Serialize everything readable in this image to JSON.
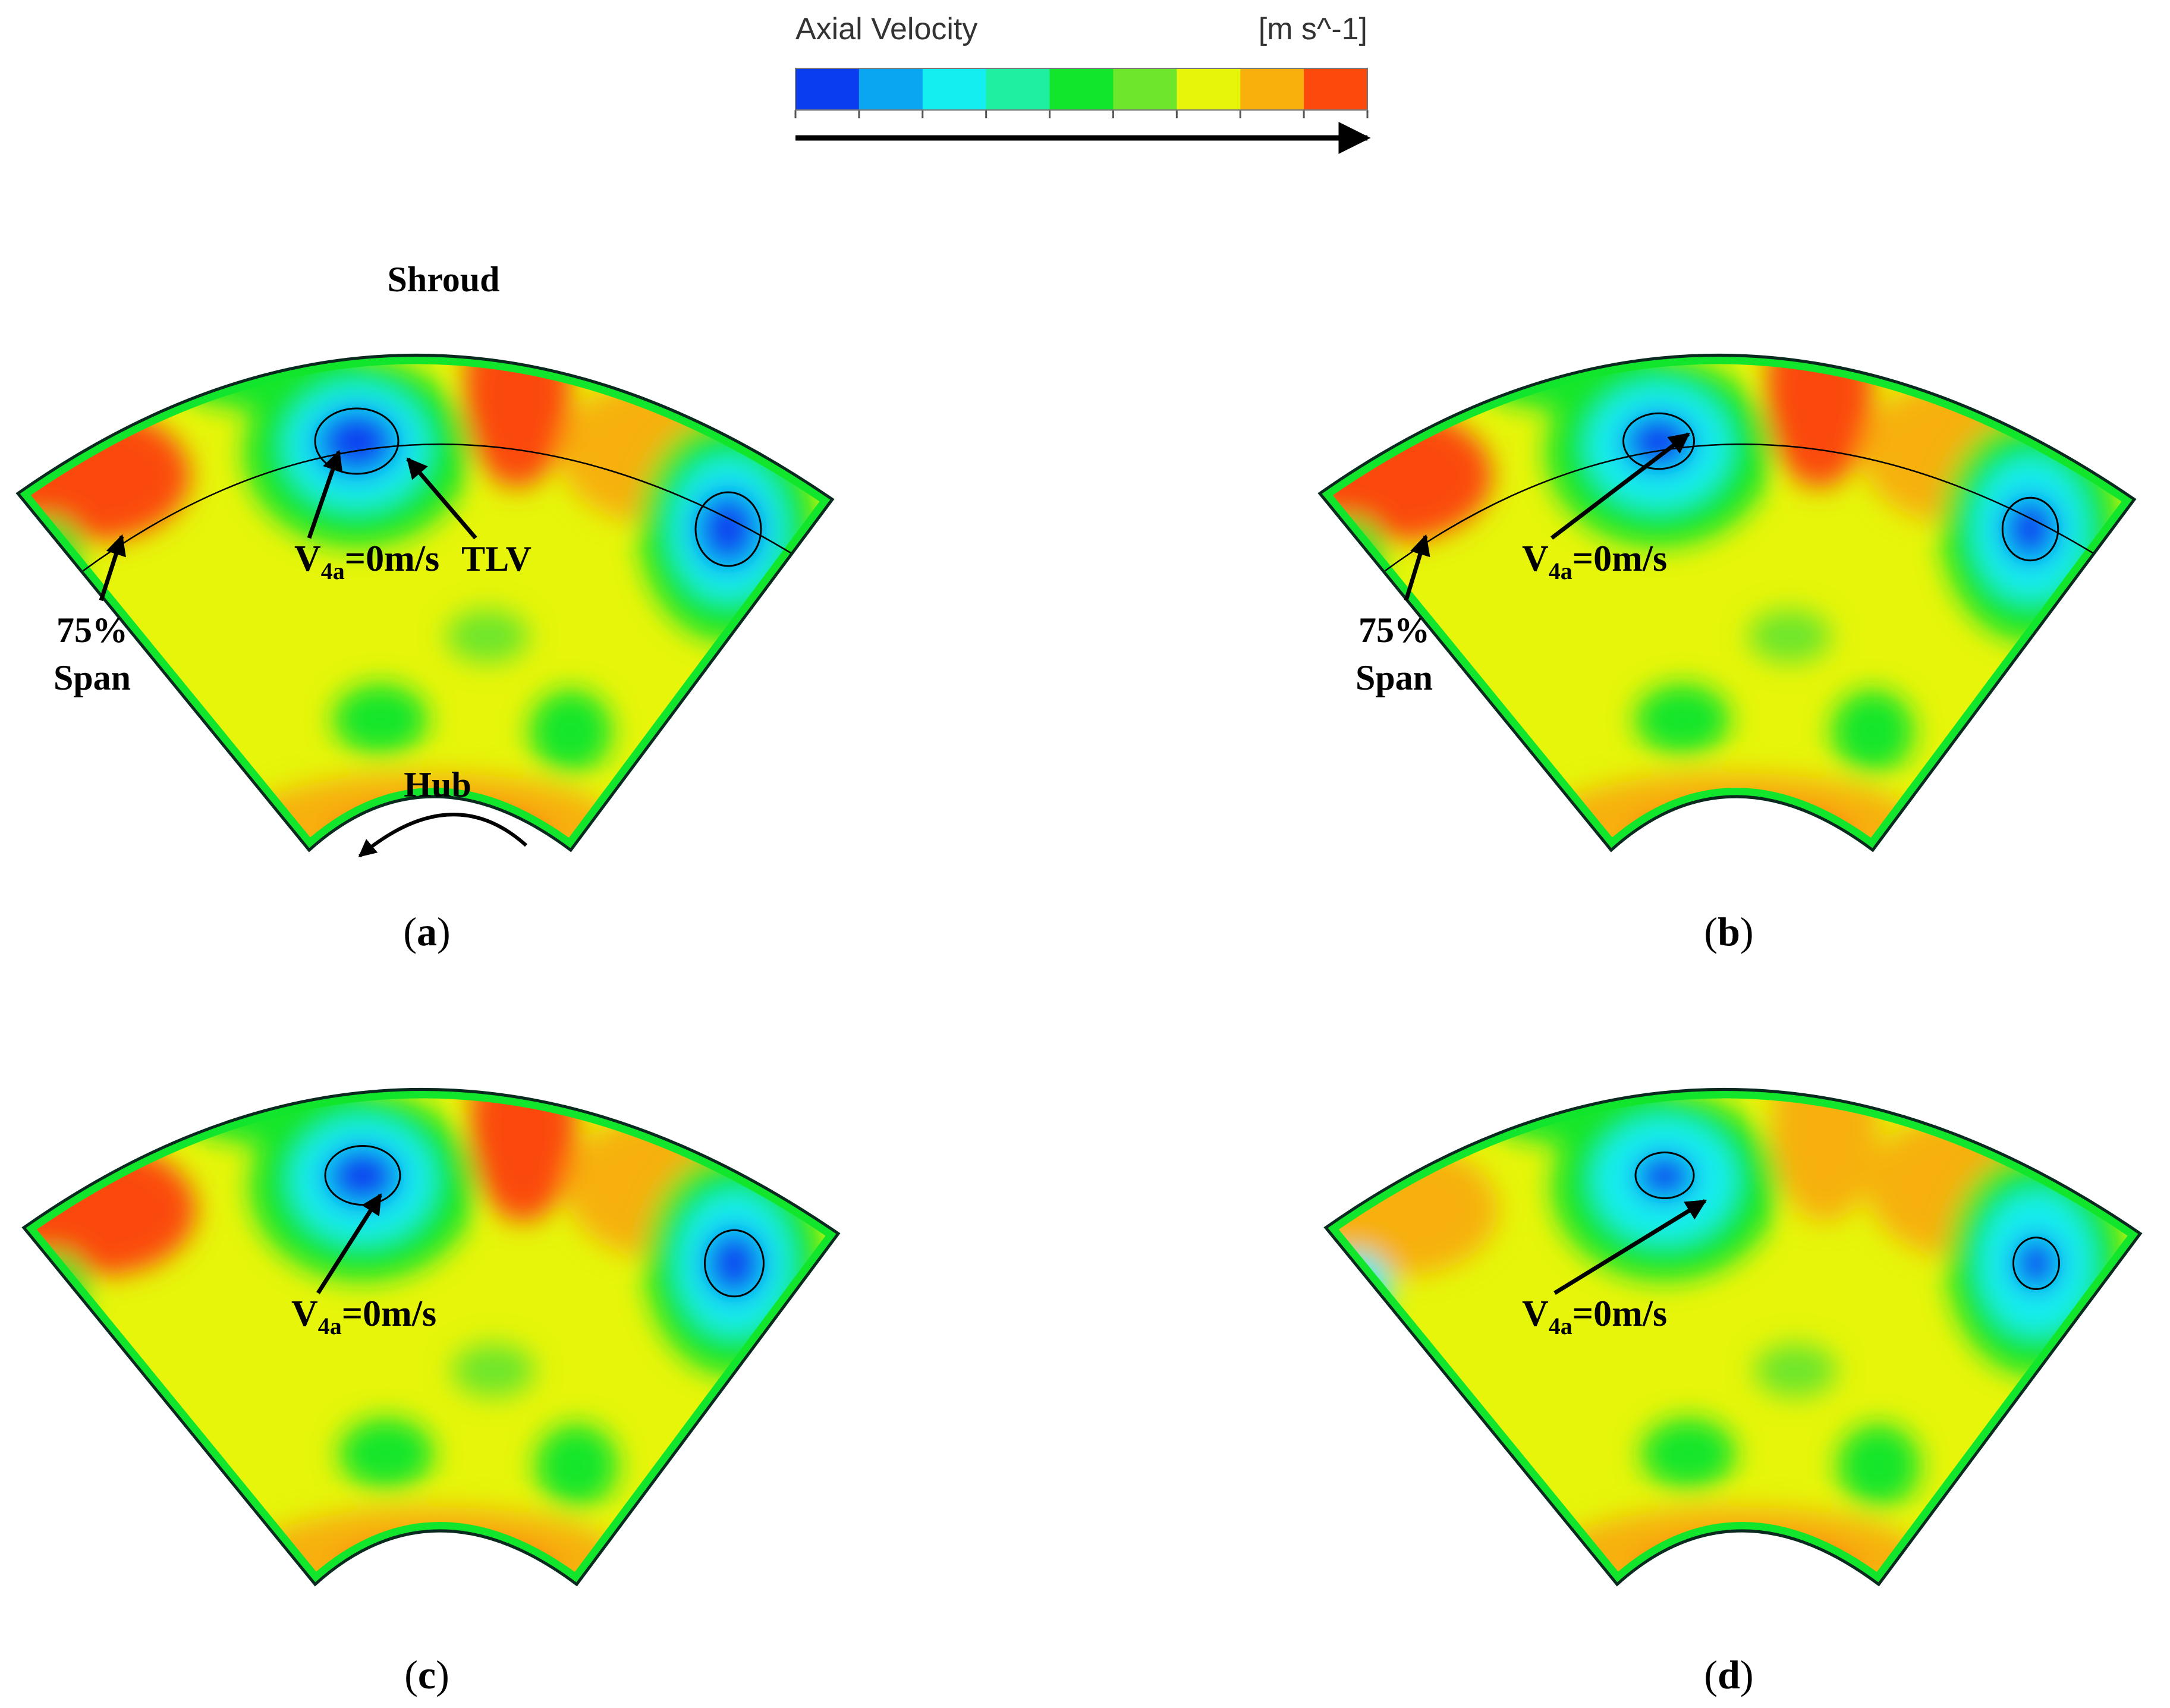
{
  "legend": {
    "title": "Axial Velocity",
    "unit": "[m s^-1]",
    "colors": [
      "#0a3cf0",
      "#0aa6f2",
      "#14eef0",
      "#1ef0a0",
      "#12e62c",
      "#6ee62c",
      "#e6f50a",
      "#f7b00c",
      "#fb4a0c"
    ]
  },
  "panels": [
    {
      "label_open": "(",
      "label_letter": "a",
      "label_close": ")",
      "annotation": "V4a=0m/s",
      "v_main": "V",
      "v_sub": "4a",
      "v_tail": "=0m/s"
    },
    {
      "label_open": "(",
      "label_letter": "b",
      "label_close": ")",
      "annotation": "V4a=0m/s",
      "v_main": "V",
      "v_sub": "4a",
      "v_tail": "=0m/s"
    },
    {
      "label_open": "(",
      "label_letter": "c",
      "label_close": ")",
      "annotation": "V4a=0m/s",
      "v_main": "V",
      "v_sub": "4a",
      "v_tail": "=0m/s"
    },
    {
      "label_open": "(",
      "label_letter": "d",
      "label_close": ")",
      "annotation": "V4a=0m/s",
      "v_main": "V",
      "v_sub": "4a",
      "v_tail": "=0m/s"
    }
  ],
  "labels": {
    "shroud": "Shroud",
    "hub": "Hub",
    "tlv": "TLV",
    "span_percent": "75%",
    "span_word": "Span"
  }
}
